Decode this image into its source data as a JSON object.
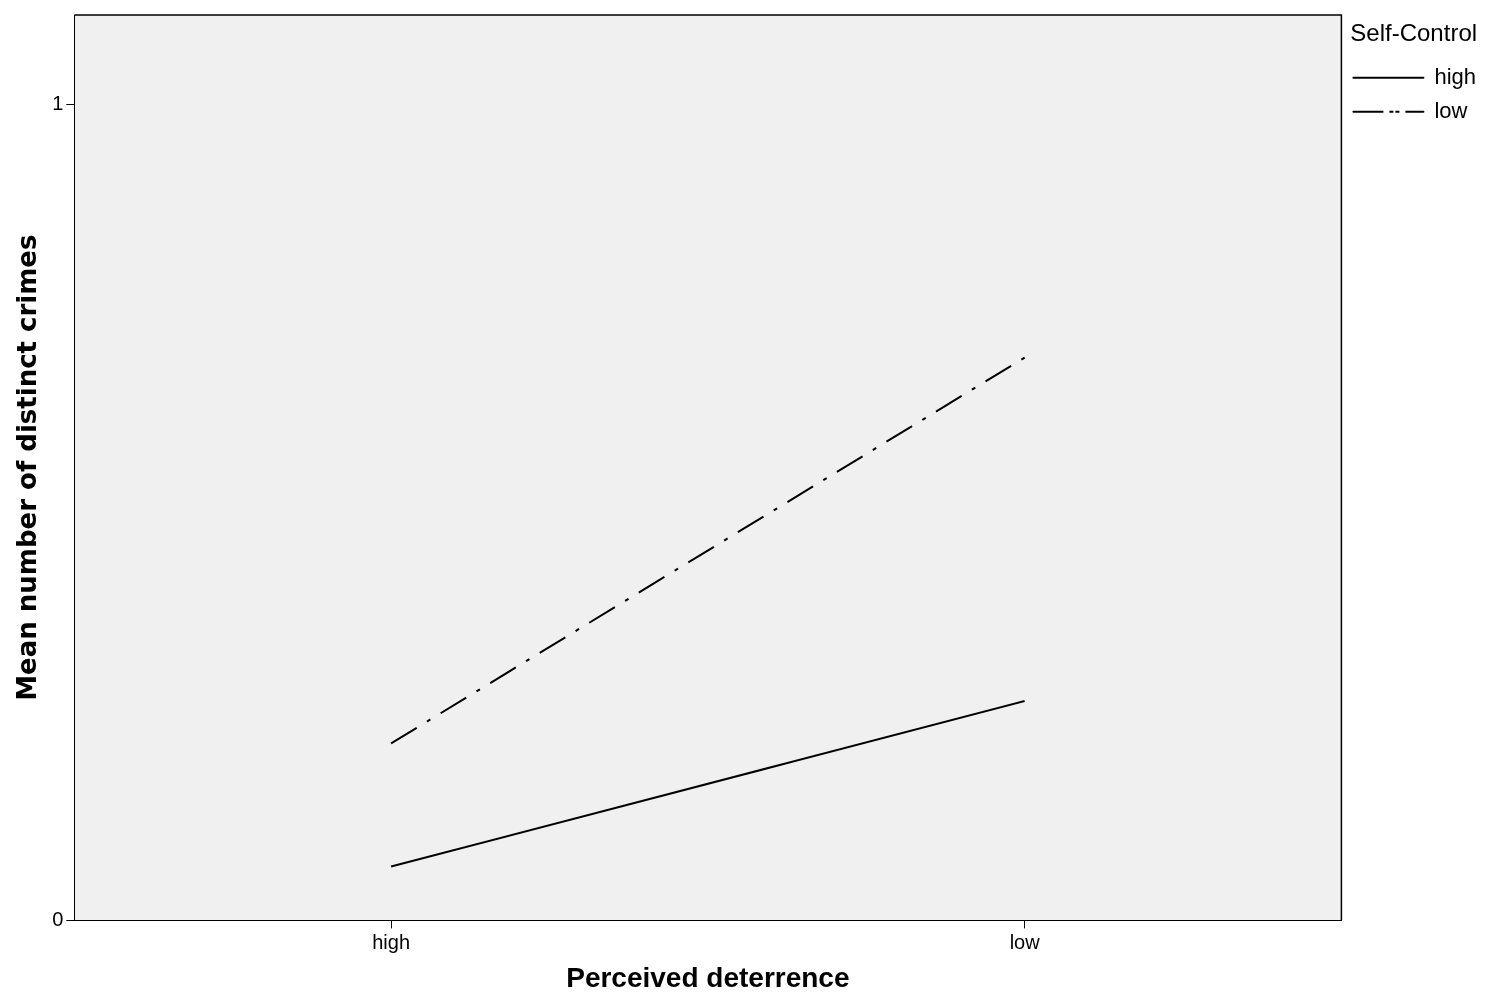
{
  "chart_data": {
    "type": "line",
    "xlabel": "Perceived deterrence",
    "ylabel": "Mean number of distinct crimes",
    "legend_title": "Self-Control",
    "categories": [
      "high",
      "low"
    ],
    "series": [
      {
        "name": "high",
        "color": "#000000",
        "values": [
          0.066,
          0.269
        ],
        "line_style": "solid"
      },
      {
        "name": "low",
        "color": "#000000",
        "values": [
          0.217,
          0.69
        ],
        "line_style": "dashed"
      }
    ],
    "ylim": [
      0,
      1.11
    ],
    "yticks": [
      0,
      1
    ],
    "grid": false,
    "legend": "top right",
    "marker": "none"
  }
}
